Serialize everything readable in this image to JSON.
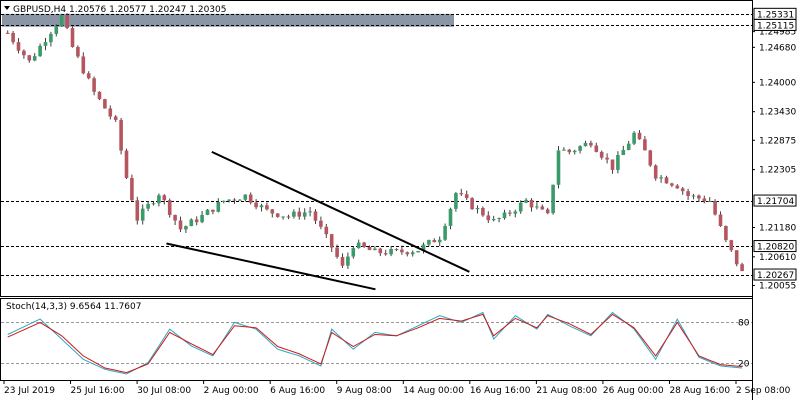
{
  "symbol_header": "GBPUSD,H4  1.20576 1.20577 1.20247 1.20305",
  "stoch_header": "Stoch(14,3,3) 9.6564 11.7607",
  "colors": {
    "bull": "#3a9a6a",
    "bear": "#b5555f",
    "wick": "#404040",
    "main_line": "#2aa8c4",
    "signal_line": "#d01818",
    "level_line": "#000000",
    "zone": "#8a96a6",
    "trendline": "#000000"
  },
  "chart_data": {
    "type": "candlestick",
    "ylim": [
      1.1985,
      1.2558
    ],
    "y_ticks": [
      "1.24985",
      "1.24680",
      "1.24000",
      "1.23430",
      "1.22875",
      "1.22305",
      "1.21180",
      "1.20610",
      "1.20055"
    ],
    "x_ticks": [
      "23 Jul 2019",
      "25 Jul 16:00",
      "30 Jul 08:00",
      "2 Aug 00:00",
      "6 Aug 16:00",
      "9 Aug 08:00",
      "14 Aug 00:00",
      "16 Aug 16:00",
      "21 Aug 08:00",
      "26 Aug 00:00",
      "28 Aug 16:00",
      "2 Sep 08:00"
    ],
    "levels": [
      {
        "label": "1.25331",
        "value": 1.25331
      },
      {
        "label": "1.25115",
        "value": 1.25115
      },
      {
        "label": "1.21704",
        "value": 1.21704
      },
      {
        "label": "1.20820",
        "value": 1.2082
      },
      {
        "label": "1.20267",
        "value": 1.20267
      }
    ],
    "resistance_zone": [
      1.2508,
      1.2533
    ],
    "trendlines": [
      {
        "from": [
          37.8,
          1.2265
        ],
        "to": [
          85.5,
          1.2032
        ]
      },
      {
        "from": [
          29.4,
          1.2087
        ],
        "to": [
          68.1,
          1.1998
        ]
      }
    ],
    "candle_points": [
      [
        0,
        1.2496
      ],
      [
        4,
        1.244
      ],
      [
        8,
        1.25
      ],
      [
        10,
        1.2528
      ],
      [
        12,
        1.2468
      ],
      [
        16,
        1.238
      ],
      [
        20,
        1.232
      ],
      [
        22,
        1.2215
      ],
      [
        24,
        1.2135
      ],
      [
        28,
        1.2185
      ],
      [
        32,
        1.2115
      ],
      [
        36,
        1.214
      ],
      [
        40,
        1.217
      ],
      [
        44,
        1.218
      ],
      [
        48,
        1.215
      ],
      [
        52,
        1.214
      ],
      [
        56,
        1.215
      ],
      [
        60,
        1.208
      ],
      [
        62,
        1.204
      ],
      [
        64,
        1.2085
      ],
      [
        68,
        1.207
      ],
      [
        72,
        1.207
      ],
      [
        76,
        1.2075
      ],
      [
        80,
        1.21
      ],
      [
        83,
        1.2185
      ],
      [
        86,
        1.216
      ],
      [
        90,
        1.213
      ],
      [
        92,
        1.214
      ],
      [
        96,
        1.217
      ],
      [
        100,
        1.214
      ],
      [
        102,
        1.227
      ],
      [
        104,
        1.2265
      ],
      [
        108,
        1.2285
      ],
      [
        112,
        1.2235
      ],
      [
        116,
        1.23
      ],
      [
        118,
        1.2265
      ],
      [
        120,
        1.222
      ],
      [
        124,
        1.22
      ],
      [
        126,
        1.218
      ],
      [
        130,
        1.217
      ],
      [
        133,
        1.209
      ],
      [
        136,
        1.203
      ]
    ],
    "volatility": 0.0011,
    "ohlc_scale": {
      "x_max": 136,
      "bars": 136
    },
    "stochastic": {
      "ylim": [
        0,
        100
      ],
      "levels": [
        80,
        20
      ],
      "level_labels": [
        "80",
        "20"
      ],
      "main": [
        [
          0,
          62
        ],
        [
          6,
          85
        ],
        [
          10,
          55
        ],
        [
          14,
          25
        ],
        [
          18,
          10
        ],
        [
          22,
          3
        ],
        [
          26,
          20
        ],
        [
          30,
          70
        ],
        [
          34,
          45
        ],
        [
          38,
          30
        ],
        [
          42,
          80
        ],
        [
          46,
          70
        ],
        [
          50,
          40
        ],
        [
          54,
          30
        ],
        [
          58,
          15
        ],
        [
          60,
          70
        ],
        [
          64,
          40
        ],
        [
          68,
          65
        ],
        [
          72,
          60
        ],
        [
          76,
          75
        ],
        [
          80,
          90
        ],
        [
          84,
          80
        ],
        [
          88,
          95
        ],
        [
          90,
          55
        ],
        [
          94,
          90
        ],
        [
          98,
          70
        ],
        [
          100,
          92
        ],
        [
          104,
          75
        ],
        [
          108,
          60
        ],
        [
          112,
          95
        ],
        [
          116,
          70
        ],
        [
          120,
          25
        ],
        [
          124,
          85
        ],
        [
          128,
          28
        ],
        [
          132,
          15
        ],
        [
          136,
          12
        ]
      ],
      "signal": [
        [
          0,
          58
        ],
        [
          6,
          80
        ],
        [
          10,
          60
        ],
        [
          14,
          30
        ],
        [
          18,
          12
        ],
        [
          22,
          5
        ],
        [
          26,
          18
        ],
        [
          30,
          65
        ],
        [
          34,
          48
        ],
        [
          38,
          32
        ],
        [
          42,
          75
        ],
        [
          46,
          72
        ],
        [
          50,
          44
        ],
        [
          54,
          33
        ],
        [
          58,
          18
        ],
        [
          60,
          65
        ],
        [
          64,
          44
        ],
        [
          68,
          62
        ],
        [
          72,
          60
        ],
        [
          76,
          72
        ],
        [
          80,
          86
        ],
        [
          84,
          82
        ],
        [
          88,
          92
        ],
        [
          90,
          60
        ],
        [
          94,
          86
        ],
        [
          98,
          72
        ],
        [
          100,
          90
        ],
        [
          104,
          78
        ],
        [
          108,
          62
        ],
        [
          112,
          92
        ],
        [
          116,
          72
        ],
        [
          120,
          30
        ],
        [
          124,
          80
        ],
        [
          128,
          30
        ],
        [
          132,
          17
        ],
        [
          136,
          14
        ]
      ]
    }
  }
}
